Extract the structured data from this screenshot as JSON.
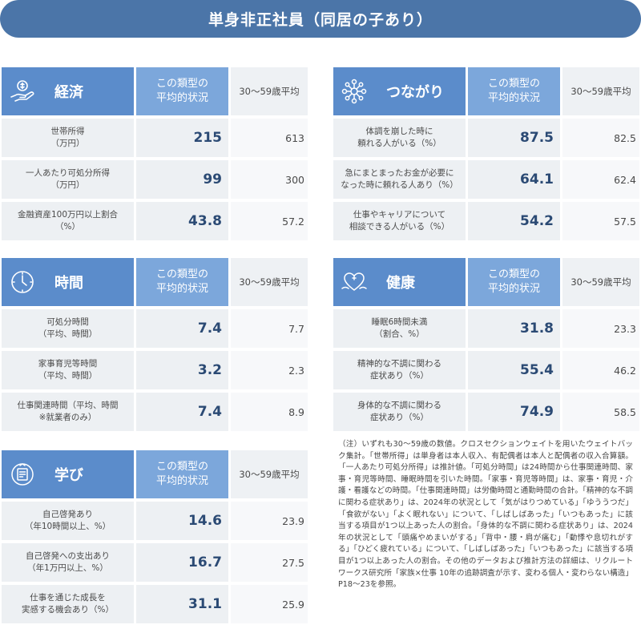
{
  "title": "単身非正社員（同居の子あり）",
  "colors": {
    "banner": "#4b75a8",
    "category": "#5b8ccb",
    "type_header": "#7ca7db",
    "value": "#2b4a74"
  },
  "panels": [
    {
      "category": "経済",
      "icon": "hand-coin-icon",
      "type_header": "この類型の\n平均的状況",
      "avg_header": "30〜59歳平均",
      "rows": [
        {
          "label": "世帯所得\n（万円）",
          "value": "215",
          "avg": "613"
        },
        {
          "label": "一人あたり可処分所得\n（万円）",
          "value": "99",
          "avg": "300"
        },
        {
          "label": "金融資産100万円以上割合\n（%）",
          "value": "43.8",
          "avg": "57.2"
        }
      ]
    },
    {
      "category": "つながり",
      "icon": "network-icon",
      "type_header": "この類型の\n平均的状況",
      "avg_header": "30〜59歳平均",
      "rows": [
        {
          "label": "体調を崩した時に\n頼れる人がいる（%）",
          "value": "87.5",
          "avg": "82.5"
        },
        {
          "label": "急にまとまったお金が必要に\nなった時に頼れる人あり（%）",
          "value": "64.1",
          "avg": "62.4"
        },
        {
          "label": "仕事やキャリアについて\n相談できる人がいる（%）",
          "value": "54.2",
          "avg": "57.5"
        }
      ]
    },
    {
      "category": "時間",
      "icon": "clock-icon",
      "type_header": "この類型の\n平均的状況",
      "avg_header": "30〜59歳平均",
      "rows": [
        {
          "label": "可処分時間\n（平均、時間）",
          "value": "7.4",
          "avg": "7.7"
        },
        {
          "label": "家事育児等時間\n（平均、時間）",
          "value": "3.2",
          "avg": "2.3"
        },
        {
          "label": "仕事関連時間（平均、時間\n※就業者のみ）",
          "value": "7.4",
          "avg": "8.9"
        }
      ]
    },
    {
      "category": "健康",
      "icon": "health-heart-icon",
      "type_header": "この類型の\n平均的状況",
      "avg_header": "30〜59歳平均",
      "rows": [
        {
          "label": "睡眠6時間未満\n（割合、%）",
          "value": "31.8",
          "avg": "23.3"
        },
        {
          "label": "精神的な不調に関わる\n症状あり（%）",
          "value": "55.4",
          "avg": "46.2"
        },
        {
          "label": "身体的な不調に関わる\n症状あり（%）",
          "value": "74.9",
          "avg": "58.5"
        }
      ]
    },
    {
      "category": "学び",
      "icon": "certificate-icon",
      "type_header": "この類型の\n平均的状況",
      "avg_header": "30〜59歳平均",
      "rows": [
        {
          "label": "自己啓発あり\n（年10時間以上、%）",
          "value": "14.6",
          "avg": "23.9"
        },
        {
          "label": "自己啓発への支出あり\n（年1万円以上、%）",
          "value": "16.7",
          "avg": "27.5"
        },
        {
          "label": "仕事を通じた成長を\n実感する機会あり（%）",
          "value": "31.1",
          "avg": "25.9"
        }
      ]
    }
  ],
  "note": "（注）いずれも30〜59歳の数値。クロスセクションウェイトを用いたウェイトバック集計。「世帯所得」は単身者は本人収入、有配偶者は本人と配偶者の収入合算額。「一人あたり可処分所得」は推計値。「可処分時間」は24時間から仕事関連時間、家事・育児等時間、睡眠時間を引いた時間。「家事・育児等時間」は、家事・育児・介護・看護などの時間。「仕事関連時間」は労働時間と通勤時間の合計。「精神的な不調に関わる症状あり」は、2024年の状況として「気がはりつめている」「ゆううつだ」「食欲がない」「よく眠れない」について、「しばしばあった」「いつもあった」に該当する項目が1つ以上あった人の割合。「身体的な不調に関わる症状あり」は、2024年の状況として「頭痛やめまいがする」「背中・腰・肩が痛む」「動悸や息切れがする」「ひどく疲れている」について、「しばしばあった」「いつもあった」に該当する項目が1つ以上あった人の割合。その他のデータおよび推計方法の詳細は、リクルートワークス研究所「家族×仕事 10年の追跡調査が示す、変わる個人・変わらない構造」P18〜23を参照。"
}
